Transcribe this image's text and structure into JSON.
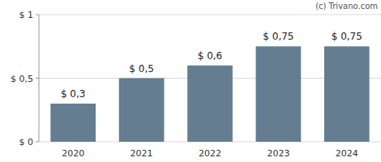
{
  "chart_data": {
    "type": "bar",
    "categories": [
      "2020",
      "2021",
      "2022",
      "2023",
      "2024"
    ],
    "values": [
      0.3,
      0.5,
      0.6,
      0.75,
      0.75
    ],
    "value_labels": [
      "$ 0,3",
      "$ 0,5",
      "$ 0,6",
      "$ 0,75",
      "$ 0,75"
    ],
    "data_labels": true,
    "color": "#647d91",
    "ylim": [
      0,
      1
    ],
    "yticks": [
      {
        "value": 0,
        "label": "$ 0"
      },
      {
        "value": 0.5,
        "label": "$ 0,5"
      },
      {
        "value": 1,
        "label": "$ 1"
      }
    ],
    "grid": true,
    "annotations": [
      "(c) Trivano.com"
    ]
  }
}
